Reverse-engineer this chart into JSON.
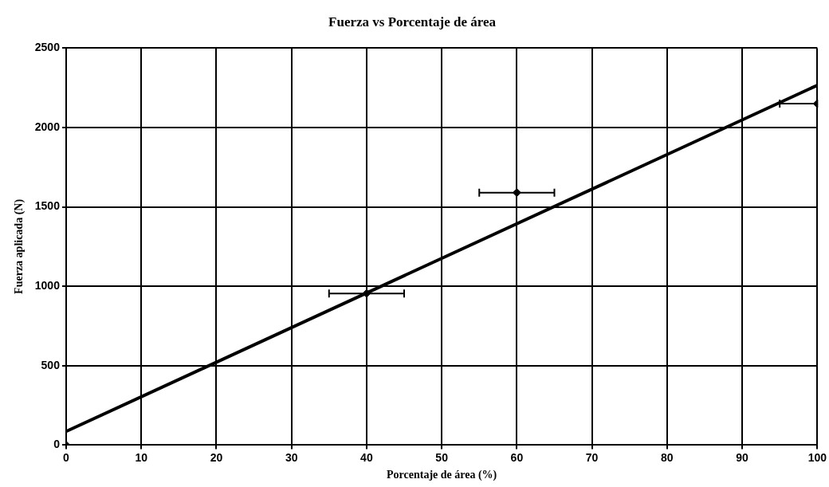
{
  "chart_data": {
    "type": "scatter",
    "title": "Fuerza vs Porcentaje de área",
    "xlabel": "Porcentaje de área (%)",
    "ylabel": "Fuerza aplicada (N)",
    "xlim": [
      0,
      100
    ],
    "xticks": [
      0,
      10,
      20,
      30,
      40,
      50,
      60,
      70,
      80,
      90,
      100
    ],
    "ylim": [
      0,
      2500
    ],
    "yticks": [
      0,
      500,
      1000,
      1500,
      2000,
      2500
    ],
    "grid": true,
    "legend": false,
    "marker": "diamond",
    "series": [
      {
        "type": "scatter",
        "color": "#000000",
        "x": [
          0,
          40,
          60,
          100
        ],
        "values": [
          0,
          955,
          1590,
          2150
        ],
        "xerrors": [
          null,
          [
            35,
            45
          ],
          [
            55,
            65
          ],
          [
            95,
            100
          ]
        ]
      },
      {
        "type": "line",
        "color": "#000000",
        "x": [
          0,
          100
        ],
        "values": [
          86,
          2266
        ],
        "marker": "none",
        "line_style": "solid"
      }
    ]
  }
}
